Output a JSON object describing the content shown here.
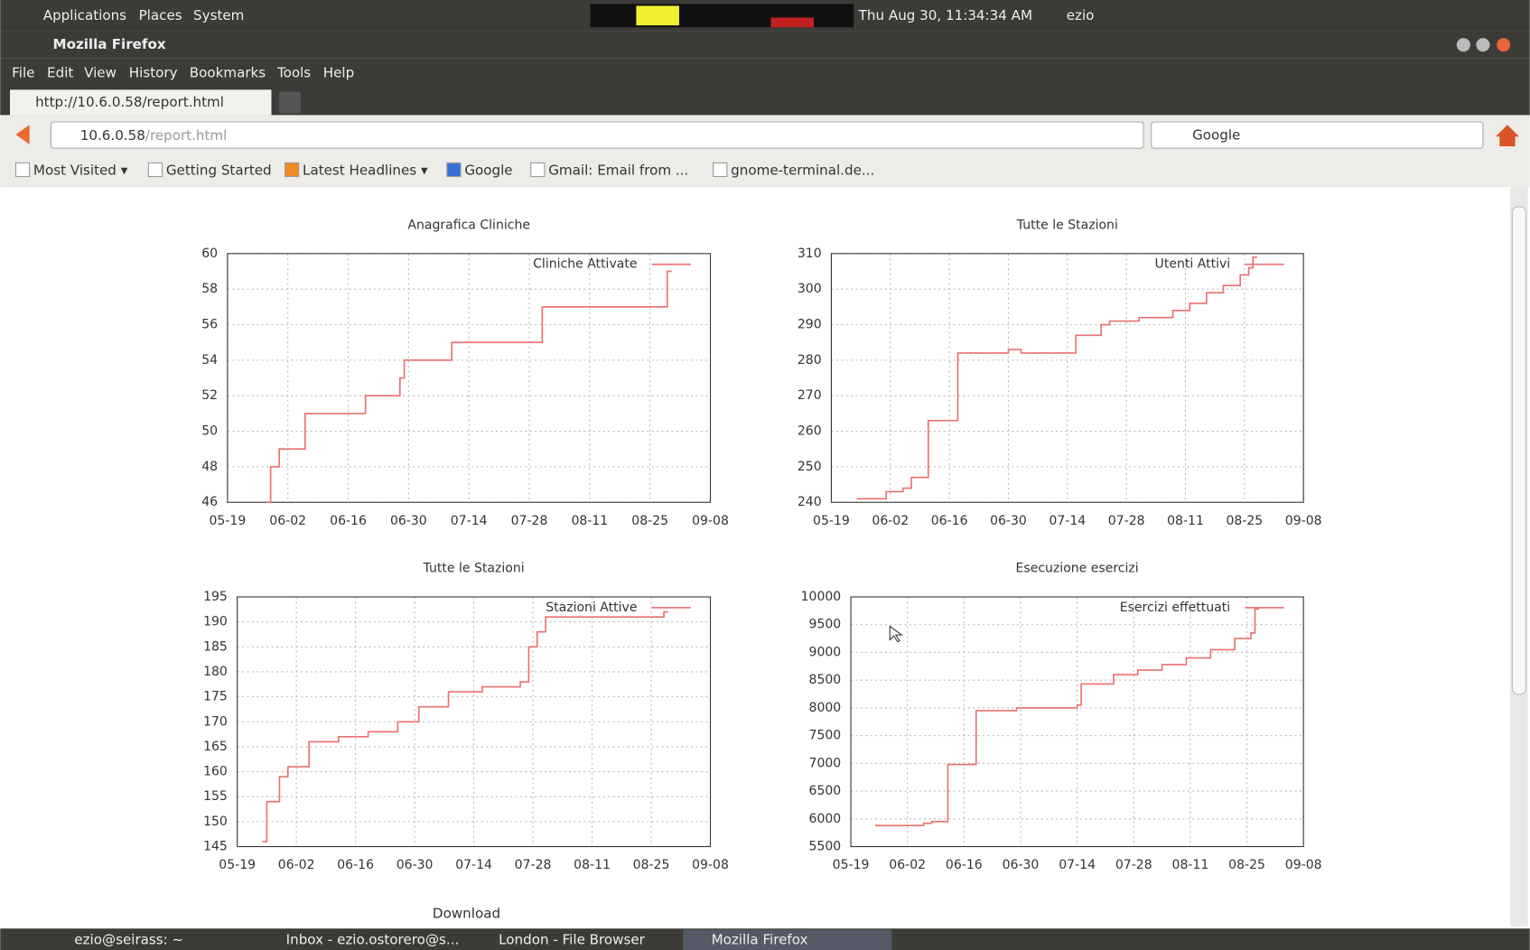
{
  "panel": {
    "menus": [
      "Applications",
      "Places",
      "System"
    ],
    "clock": "Thu Aug 30, 11:34:34 AM",
    "user": "ezio"
  },
  "window_title": "Mozilla Firefox",
  "menu": [
    "File",
    "Edit",
    "View",
    "History",
    "Bookmarks",
    "Tools",
    "Help"
  ],
  "tab": "http://10.6.0.58/report.html",
  "url": {
    "host": "10.6.0.58",
    "path": "/report.html"
  },
  "search_placeholder": "Google",
  "bookmarks": [
    "Most Visited ▾",
    "Getting Started",
    "Latest Headlines ▾",
    "Google",
    "Gmail: Email from ...",
    "gnome-terminal.de..."
  ],
  "chart_data": [
    {
      "type": "line",
      "step": true,
      "title": "Anagrafica Cliniche",
      "legend": "upper right",
      "grid": true,
      "x": [
        "05-28",
        "05-29",
        "05-31",
        "06-06",
        "06-20",
        "06-28",
        "06-29",
        "07-10",
        "07-31",
        "08-29",
        "08-30"
      ],
      "series": [
        {
          "name": "Cliniche Attivate",
          "color": "#e8706f",
          "values": [
            46,
            48,
            49,
            51,
            52,
            53,
            54,
            55,
            57,
            59,
            59
          ]
        }
      ],
      "xlim": [
        "05-19",
        "09-08"
      ],
      "xticks": [
        "05-19",
        "06-02",
        "06-16",
        "06-30",
        "07-14",
        "07-28",
        "08-11",
        "08-25",
        "09-08"
      ],
      "ylim": [
        46,
        60
      ],
      "yticks": [
        46,
        48,
        50,
        52,
        54,
        56,
        58,
        60
      ]
    },
    {
      "type": "line",
      "step": true,
      "title": "Tutte le Stazioni",
      "legend": "upper right",
      "grid": true,
      "x": [
        "05-25",
        "06-01",
        "06-05",
        "06-07",
        "06-11",
        "06-18",
        "06-30",
        "07-03",
        "07-16",
        "07-22",
        "07-24",
        "07-31",
        "08-04",
        "08-08",
        "08-12",
        "08-16",
        "08-20",
        "08-24",
        "08-26",
        "08-27",
        "08-28"
      ],
      "series": [
        {
          "name": "Utenti Attivi",
          "color": "#e8706f",
          "values": [
            241,
            243,
            244,
            247,
            263,
            282,
            283,
            282,
            287,
            290,
            291,
            292,
            292,
            294,
            296,
            299,
            301,
            304,
            306,
            309,
            309
          ]
        }
      ],
      "xlim": [
        "05-19",
        "09-08"
      ],
      "xticks": [
        "05-19",
        "06-02",
        "06-16",
        "06-30",
        "07-14",
        "07-28",
        "08-11",
        "08-25",
        "09-08"
      ],
      "ylim": [
        240,
        310
      ],
      "yticks": [
        240,
        250,
        260,
        270,
        280,
        290,
        300,
        310
      ]
    },
    {
      "type": "line",
      "step": true,
      "title": "Tutte le Stazioni",
      "legend": "upper right",
      "grid": true,
      "x": [
        "05-25",
        "05-26",
        "05-29",
        "05-31",
        "06-05",
        "06-12",
        "06-19",
        "06-26",
        "07-01",
        "07-08",
        "07-16",
        "07-25",
        "07-27",
        "07-29",
        "07-31",
        "08-28",
        "08-29"
      ],
      "series": [
        {
          "name": "Stazioni Attive",
          "color": "#e8706f",
          "values": [
            146,
            154,
            159,
            161,
            166,
            167,
            168,
            170,
            173,
            176,
            177,
            178,
            185,
            188,
            191,
            192,
            192
          ]
        }
      ],
      "xlim": [
        "05-19",
        "09-08"
      ],
      "xticks": [
        "05-19",
        "06-02",
        "06-16",
        "06-30",
        "07-14",
        "07-28",
        "08-11",
        "08-25",
        "09-08"
      ],
      "ylim": [
        145,
        195
      ],
      "yticks": [
        145,
        150,
        155,
        160,
        165,
        170,
        175,
        180,
        185,
        190,
        195
      ]
    },
    {
      "type": "line",
      "step": true,
      "title": "Esecuzione esercizi",
      "legend": "upper right",
      "grid": true,
      "x": [
        "05-25",
        "06-06",
        "06-08",
        "06-12",
        "06-19",
        "06-29",
        "07-14",
        "07-15",
        "07-23",
        "07-29",
        "08-04",
        "08-10",
        "08-16",
        "08-22",
        "08-26",
        "08-27",
        "08-28"
      ],
      "series": [
        {
          "name": "Esercizi effettuati",
          "color": "#e8706f",
          "values": [
            5880,
            5920,
            5950,
            6980,
            7950,
            8000,
            8050,
            8430,
            8600,
            8680,
            8780,
            8900,
            9050,
            9250,
            9350,
            9780,
            9780
          ]
        }
      ],
      "xlim": [
        "05-19",
        "09-08"
      ],
      "xticks": [
        "05-19",
        "06-02",
        "06-16",
        "06-30",
        "07-14",
        "07-28",
        "08-11",
        "08-25",
        "09-08"
      ],
      "ylim": [
        5500,
        10000
      ],
      "yticks": [
        5500,
        6000,
        6500,
        7000,
        7500,
        8000,
        8500,
        9000,
        9500,
        10000
      ]
    }
  ],
  "download": "Download",
  "taskbar": [
    "ezio@seirass: ~",
    "Inbox - ezio.ostorero@s...",
    "London - File Browser",
    "Mozilla Firefox"
  ]
}
